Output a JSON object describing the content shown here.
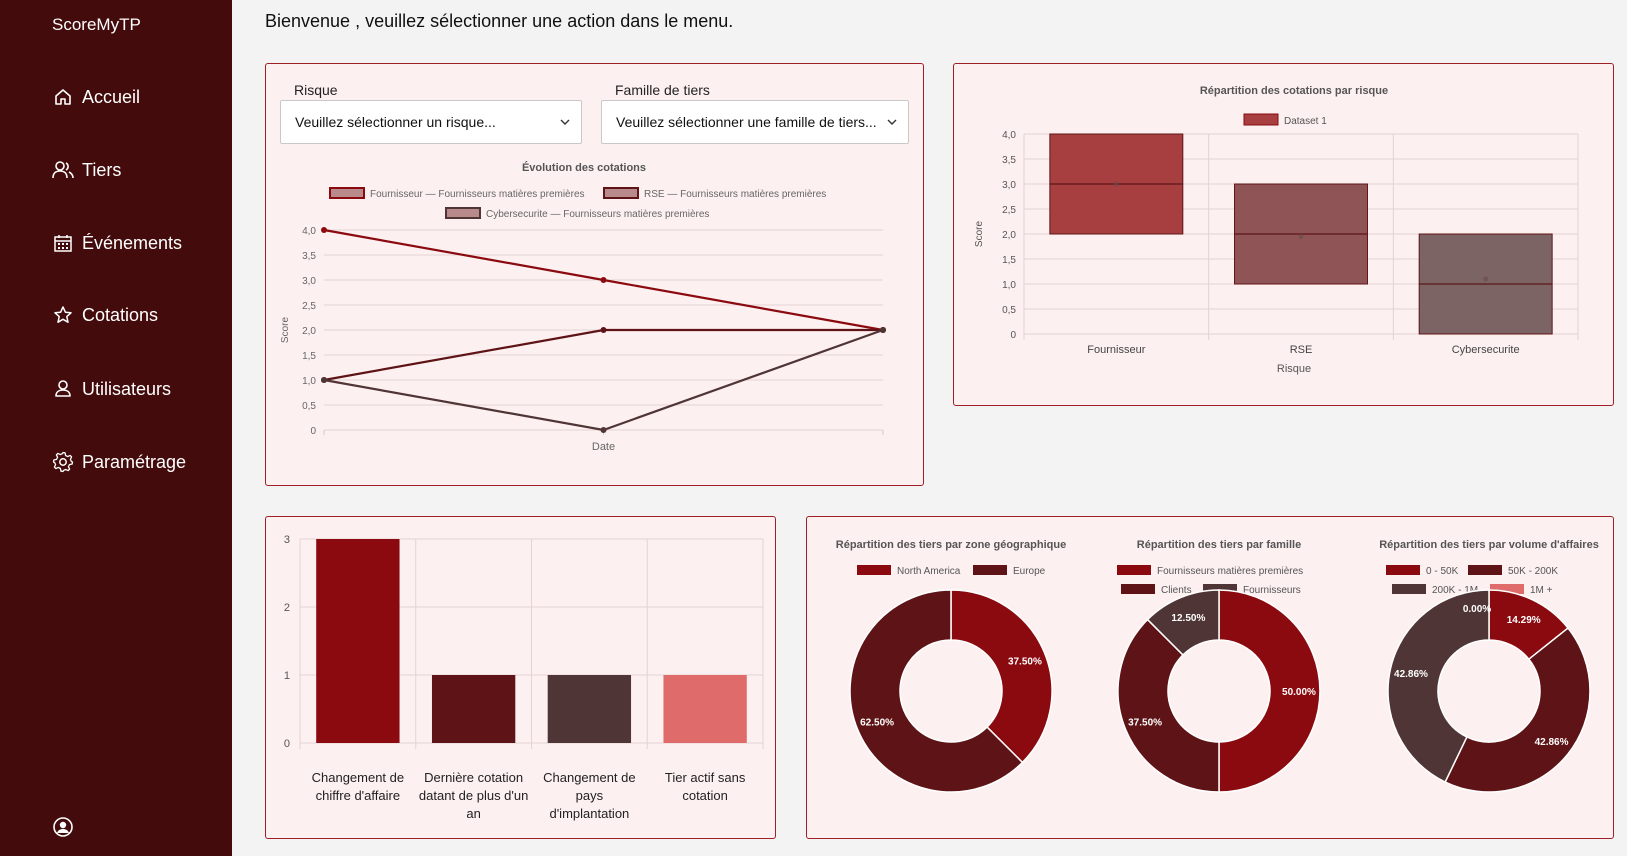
{
  "app": {
    "title": "ScoreMyTP"
  },
  "nav": {
    "items": [
      {
        "label": "Accueil",
        "icon": "home-icon"
      },
      {
        "label": "Tiers",
        "icon": "users-icon"
      },
      {
        "label": "Événements",
        "icon": "calendar-icon"
      },
      {
        "label": "Cotations",
        "icon": "star-icon"
      },
      {
        "label": "Utilisateurs",
        "icon": "user-icon"
      },
      {
        "label": "Paramétrage",
        "icon": "gear-icon"
      }
    ]
  },
  "main": {
    "welcome": "Bienvenue , veuillez sélectionner une action dans le menu."
  },
  "filters": {
    "risk_label": "Risque",
    "risk_value": "Veuillez sélectionner un risque...",
    "family_label": "Famille de tiers",
    "family_value": "Veuillez sélectionner une famille de tiers..."
  },
  "colors": {
    "primary": "#8b0a0f",
    "dark": "#5e1416",
    "muted": "#4f3535",
    "light": "#e06b6b",
    "sidebar": "#430b0b",
    "card_bg": "#fdf0f0",
    "card_border": "#9e1f24"
  },
  "chart_data": [
    {
      "type": "line",
      "title": "Évolution des cotations",
      "xlabel": "Date",
      "ylabel": "Score",
      "ylim": [
        0,
        4
      ],
      "yticks": [
        "0",
        "0,5",
        "1,0",
        "1,5",
        "2,0",
        "2,5",
        "3,0",
        "3,5",
        "4,0"
      ],
      "series": [
        {
          "name": "Fournisseur — Fournisseurs matières premières",
          "values": [
            4,
            3,
            2
          ],
          "color": "#8b0a0f"
        },
        {
          "name": "RSE — Fournisseurs matières premières",
          "values": [
            1,
            2,
            2
          ],
          "color": "#5e1416"
        },
        {
          "name": "Cybersecurite — Fournisseurs matières premières",
          "values": [
            1,
            0,
            2
          ],
          "color": "#4f3535"
        }
      ]
    },
    {
      "type": "bar",
      "title": "Répartition des cotations par risque",
      "legend": [
        "Dataset 1"
      ],
      "categories": [
        "Fournisseur",
        "RSE",
        "Cybersecurite"
      ],
      "ranges": [
        [
          2,
          4
        ],
        [
          1,
          3
        ],
        [
          0,
          2
        ]
      ],
      "medians": [
        3,
        2,
        1
      ],
      "means": [
        3,
        1.95,
        1.1
      ],
      "colors": [
        "#a73f40",
        "#8f5556",
        "#7d6464"
      ],
      "xlabel": "Risque",
      "ylabel": "Score",
      "ylim": [
        0,
        4
      ],
      "yticks": [
        "0",
        "0,5",
        "1,0",
        "1,5",
        "2,0",
        "2,5",
        "3,0",
        "3,5",
        "4,0"
      ]
    },
    {
      "type": "bar",
      "categories": [
        "Changement de chiffre d'affaire",
        "Dernière cotation datant de plus d'un an",
        "Changement de pays d'implantation",
        "Tier actif sans cotation"
      ],
      "values": [
        3,
        1,
        1,
        1
      ],
      "colors": [
        "#8b0a0f",
        "#5e1416",
        "#4f3535",
        "#e06b6b"
      ],
      "ylim": [
        0,
        3
      ],
      "yticks": [
        "0",
        "1",
        "2",
        "3"
      ]
    },
    {
      "type": "pie",
      "title": "Répartition des tiers par zone géographique",
      "labels": [
        "North America",
        "Europe"
      ],
      "values": [
        37.5,
        62.5
      ],
      "value_labels": [
        "37.50%",
        "62.50%"
      ],
      "colors": [
        "#8b0a0f",
        "#5e1416"
      ]
    },
    {
      "type": "pie",
      "title": "Répartition des tiers par famille",
      "labels": [
        "Fournisseurs matières premières",
        "Clients",
        "Fournisseurs"
      ],
      "values": [
        50,
        37.5,
        12.5
      ],
      "value_labels": [
        "50.00%",
        "37.50%",
        "12.50%"
      ],
      "colors": [
        "#8b0a0f",
        "#5e1416",
        "#4f3535"
      ]
    },
    {
      "type": "pie",
      "title": "Répartition des tiers par volume d'affaires",
      "labels": [
        "0 - 50K",
        "50K - 200K",
        "200K - 1M",
        "1M +"
      ],
      "values": [
        14.29,
        42.86,
        42.86,
        0
      ],
      "value_labels": [
        "14.29%",
        "42.86%",
        "42.86%",
        "0.00%"
      ],
      "colors": [
        "#8b0a0f",
        "#5e1416",
        "#4f3535",
        "#e06b6b"
      ]
    }
  ]
}
